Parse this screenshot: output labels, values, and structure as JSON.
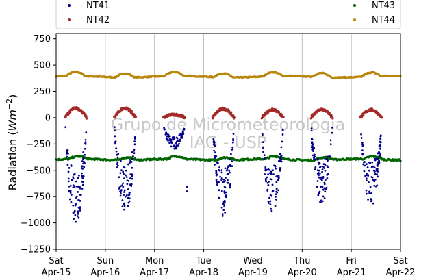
{
  "chart_data": {
    "type": "scatter",
    "ylabel_prefix": "Radiation (",
    "ylabel_math": "Wm",
    "ylabel_sup": "−2",
    "ylabel_suffix": ")",
    "ylim": [
      -1250,
      800
    ],
    "yticks": [
      750,
      500,
      250,
      0,
      -250,
      -500,
      -750,
      -1000,
      -1250
    ],
    "ytick_labels": [
      "750",
      "500",
      "250",
      "0",
      "−250",
      "−500",
      "−750",
      "−1000",
      "−1250"
    ],
    "xlim_days": [
      0,
      7
    ],
    "xticks": [
      {
        "day": 0,
        "line1": "Sat",
        "line2": "Apr-15"
      },
      {
        "day": 1,
        "line1": "Sun",
        "line2": "Apr-16"
      },
      {
        "day": 2,
        "line1": "Mon",
        "line2": "Apr-17"
      },
      {
        "day": 3,
        "line1": "Tue",
        "line2": "Apr-18"
      },
      {
        "day": 4,
        "line1": "Wed",
        "line2": "Apr-19"
      },
      {
        "day": 5,
        "line1": "Thu",
        "line2": "Apr-20"
      },
      {
        "day": 6,
        "line1": "Fri",
        "line2": "Apr-21"
      },
      {
        "day": 7,
        "line1": "Sat",
        "line2": "Apr-22"
      }
    ],
    "grid": "vertical",
    "legend_placement": "top",
    "watermark": [
      "Grupo de Micrometeorologia",
      "IAG - USP"
    ],
    "series": [
      {
        "name": "NT41",
        "color": "#00008b",
        "kind": "longwave_net_night_dips",
        "daily_min": [
          -1010,
          -920,
          -300,
          -940,
          -900,
          -820,
          -850
        ]
      },
      {
        "name": "NT42",
        "color": "#a52a2a",
        "kind": "daytime_arc",
        "daily_peak": [
          90,
          90,
          30,
          85,
          75,
          80,
          75
        ]
      },
      {
        "name": "NT43",
        "color": "#006400",
        "kind": "baseline",
        "level": -390,
        "range": [
          -410,
          -340
        ]
      },
      {
        "name": "NT44",
        "color": "#b8860b",
        "kind": "baseline",
        "level": 400,
        "range": [
          380,
          465
        ]
      }
    ]
  }
}
